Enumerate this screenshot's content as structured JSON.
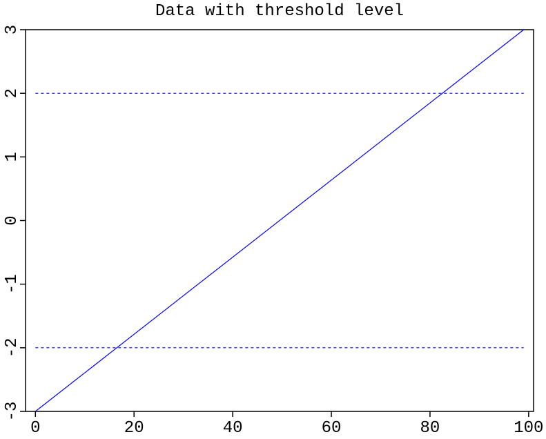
{
  "chart_data": {
    "type": "line",
    "title": "Data with threshold level",
    "x": [
      0,
      99
    ],
    "series": [
      {
        "color": "#0000ff",
        "linestyle": "solid",
        "values": [
          -3,
          3
        ]
      },
      {
        "color": "#0000ff",
        "linestyle": "dashed",
        "values": [
          2,
          2
        ]
      },
      {
        "color": "#0000ff",
        "linestyle": "dashed",
        "values": [
          -2,
          -2
        ]
      }
    ],
    "xlim": [
      -2,
      101
    ],
    "xticks": [
      0,
      20,
      40,
      60,
      80,
      100
    ],
    "ylim": [
      -3,
      3
    ],
    "yticks": [
      -3,
      -2,
      -1,
      0,
      1,
      2,
      3
    ]
  }
}
